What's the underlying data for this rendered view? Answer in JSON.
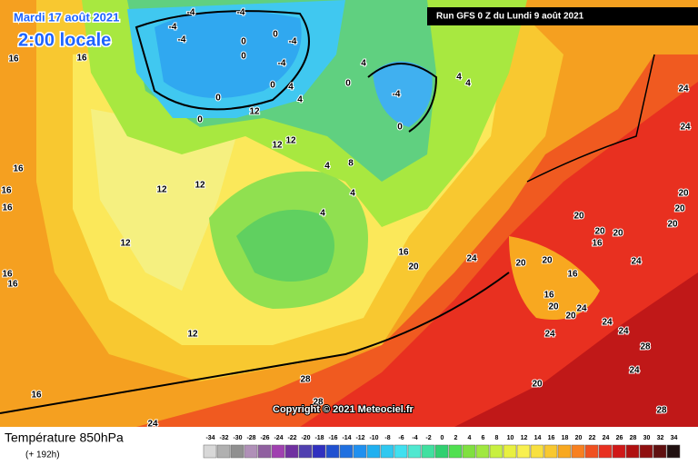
{
  "header": {
    "date": "Mardi 17 août 2021",
    "time": "2:00 locale",
    "run": "Run GFS 0 Z du Lundi 9 août 2021",
    "copyright": "Copyright © 2021 Meteociel.fr"
  },
  "footer": {
    "title": "Température 850hPa",
    "lead": "(+ 192h)"
  },
  "scale": {
    "values": [
      -34,
      -32,
      -30,
      -28,
      -26,
      -24,
      -22,
      -20,
      -18,
      -16,
      -14,
      -12,
      -10,
      -8,
      -6,
      -4,
      -2,
      0,
      2,
      4,
      6,
      8,
      10,
      12,
      14,
      16,
      18,
      20,
      22,
      24,
      26,
      28,
      30,
      32,
      34
    ],
    "colors": [
      "#d8d8d8",
      "#b0b0b0",
      "#909090",
      "#b090b8",
      "#9060a0",
      "#a040b0",
      "#7030a0",
      "#5040b0",
      "#3030c0",
      "#2050d0",
      "#2070e0",
      "#2090f0",
      "#20b0f0",
      "#30c8f0",
      "#40e0f0",
      "#50e8d0",
      "#40e0a0",
      "#30d070",
      "#50e050",
      "#80e040",
      "#a0e840",
      "#c8f040",
      "#e8f040",
      "#f8f050",
      "#f8e040",
      "#f8c830",
      "#f8a820",
      "#f88020",
      "#f05020",
      "#e83020",
      "#d01818",
      "#b01010",
      "#901010",
      "#601010",
      "#201010"
    ]
  },
  "map": {
    "labels": [
      -4,
      -4,
      -4,
      -4,
      -4,
      -4,
      0,
      0,
      0,
      0,
      4,
      4,
      4,
      0,
      0,
      -4,
      4,
      0,
      4,
      4,
      0,
      12,
      12,
      12,
      4,
      8,
      4,
      12,
      12,
      16,
      12,
      16,
      20,
      16,
      24,
      16,
      16,
      16,
      16,
      16,
      16,
      12,
      20,
      20,
      20,
      16,
      20,
      16,
      20,
      20,
      24,
      24,
      20,
      24,
      24,
      20,
      24,
      28,
      28,
      24,
      28,
      20,
      20,
      24,
      24,
      20,
      24,
      28,
      16
    ]
  }
}
